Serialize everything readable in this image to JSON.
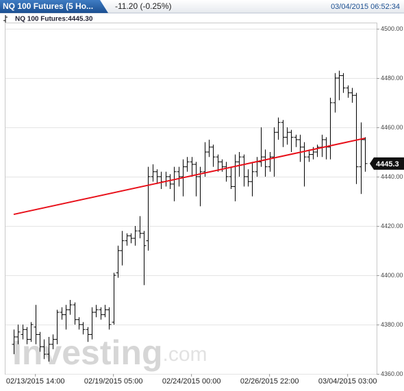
{
  "chart_data": {
    "type": "ohlc",
    "title": "NQ 100 Futures (5 Ho...",
    "change": "-11.20 (-0.25%)",
    "timestamp": "03/04/2015 06:52:34",
    "legend": "NQ 100 Futures:4445.30",
    "watermark": {
      "brand": "Investing",
      "suffix": ".com"
    },
    "color": "#000000",
    "categories": [
      null,
      null,
      null,
      null,
      null,
      "02/13/2015 14:00",
      null,
      null,
      null,
      null,
      null,
      null,
      null,
      null,
      null,
      null,
      null,
      null,
      null,
      null,
      null,
      null,
      null,
      "02/19/2015 05:00",
      null,
      null,
      null,
      null,
      null,
      null,
      null,
      null,
      null,
      null,
      null,
      null,
      null,
      null,
      null,
      null,
      null,
      "02/24/2015 00:00",
      null,
      null,
      null,
      null,
      null,
      null,
      null,
      null,
      null,
      null,
      null,
      null,
      null,
      null,
      null,
      null,
      null,
      "02/26/2015 22:00",
      null,
      null,
      null,
      null,
      null,
      null,
      null,
      null,
      null,
      null,
      null,
      null,
      null,
      null,
      null,
      null,
      null,
      "03/04/2015 03:00",
      null,
      null,
      null,
      null
    ],
    "open": [
      4372,
      4375,
      4376,
      4378,
      4374,
      4379,
      4376,
      4371,
      4368,
      4372,
      4374,
      4385,
      4384,
      4386,
      4388,
      4382,
      4380,
      4378,
      4376,
      4385,
      4386,
      4384,
      4386,
      4381,
      4401,
      4410,
      4414,
      4416,
      4415,
      4418,
      4417,
      4414,
      4440,
      4442,
      4440,
      4438,
      4440,
      4437,
      4442,
      4440,
      4444,
      4446,
      4445,
      4440,
      4442,
      4450,
      4452,
      4448,
      4446,
      4444,
      4440,
      4436,
      4446,
      4448,
      4440,
      4438,
      4442,
      4446,
      4448,
      4444,
      4448,
      4458,
      4462,
      4456,
      4458,
      4456,
      4455,
      4452,
      4448,
      4449,
      4450,
      4452,
      4455,
      4452,
      4470,
      4480,
      4481,
      4476,
      4474,
      4473,
      4444,
      4455
    ],
    "high": [
      4378,
      4380,
      4380,
      4379,
      4381,
      4388,
      4377,
      4374,
      4375,
      4376,
      4386,
      4387,
      4388,
      4390,
      4389,
      4383,
      4381,
      4379,
      4387,
      4388,
      4387,
      4388,
      4387,
      4401,
      4412,
      4418,
      4417,
      4417,
      4420,
      4424,
      4418,
      4444,
      4445,
      4443,
      4442,
      4442,
      4441,
      4444,
      4444,
      4447,
      4448,
      4448,
      4446,
      4444,
      4454,
      4455,
      4453,
      4449,
      4447,
      4446,
      4444,
      4449,
      4450,
      4449,
      4443,
      4446,
      4448,
      4460,
      4451,
      4450,
      4460,
      4464,
      4463,
      4460,
      4459,
      4457,
      4457,
      4454,
      4451,
      4452,
      4453,
      4457,
      4456,
      4472,
      4482,
      4483,
      4482,
      4477,
      4476,
      4474,
      4462,
      4456
    ],
    "low": [
      4368,
      4372,
      4374,
      4372,
      4373,
      4372,
      4369,
      4366,
      4365,
      4370,
      4372,
      4382,
      4378,
      4384,
      4380,
      4378,
      4376,
      4373,
      4374,
      4383,
      4382,
      4383,
      4378,
      4380,
      4399,
      4404,
      4412,
      4413,
      4412,
      4415,
      4396,
      4410,
      4438,
      4437,
      4435,
      4436,
      4435,
      4430,
      4436,
      4432,
      4442,
      4440,
      4432,
      4428,
      4440,
      4448,
      4444,
      4442,
      4442,
      4438,
      4435,
      4430,
      4440,
      4436,
      4436,
      4432,
      4440,
      4444,
      4440,
      4442,
      4440,
      4455,
      4452,
      4453,
      4450,
      4452,
      4446,
      4436,
      4446,
      4447,
      4448,
      4448,
      4447,
      4447,
      4466,
      4471,
      4474,
      4472,
      4470,
      4437,
      4433,
      4442
    ],
    "close": [
      4375,
      4377,
      4378,
      4374,
      4380,
      4376,
      4371,
      4368,
      4372,
      4374,
      4385,
      4384,
      4386,
      4388,
      4382,
      4380,
      4378,
      4376,
      4385,
      4386,
      4384,
      4386,
      4380,
      4400,
      4410,
      4414,
      4416,
      4415,
      4418,
      4417,
      4412,
      4440,
      4442,
      4440,
      4438,
      4440,
      4437,
      4442,
      4440,
      4444,
      4446,
      4445,
      4440,
      4442,
      4450,
      4452,
      4448,
      4446,
      4444,
      4440,
      4436,
      4446,
      4448,
      4440,
      4438,
      4442,
      4446,
      4448,
      4444,
      4448,
      4458,
      4462,
      4456,
      4458,
      4456,
      4455,
      4452,
      4448,
      4449,
      4450,
      4452,
      4455,
      4452,
      4470,
      4480,
      4481,
      4476,
      4474,
      4473,
      4444,
      4455,
      4445.3
    ],
    "last_value": 4445.3,
    "last_value_label": "4445.3",
    "trendline": {
      "start": 4424.7,
      "end": 4455.6,
      "color": "#e8101a"
    },
    "ylim": [
      4360,
      4500
    ],
    "yticks": [
      {
        "value": 4360,
        "label": "4360.00"
      },
      {
        "value": 4380,
        "label": "4380.00"
      },
      {
        "value": 4400,
        "label": "4400.00"
      },
      {
        "value": 4420,
        "label": "4420.00"
      },
      {
        "value": 4440,
        "label": "4440.00"
      },
      {
        "value": 4460,
        "label": "4460.00"
      },
      {
        "value": 4480,
        "label": "4480.00"
      },
      {
        "value": 4500,
        "label": "4500.00"
      }
    ],
    "grid": true
  }
}
